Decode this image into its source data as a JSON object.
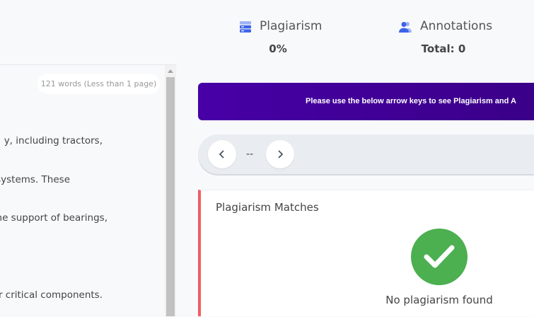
{
  "header": {
    "plagiarism": {
      "icon": "server-stack-icon",
      "label": "Plagiarism",
      "value": "0%"
    },
    "annotations": {
      "icon": "users-icon",
      "label": "Annotations",
      "value": "Total: 0"
    }
  },
  "document": {
    "word_count": "121 words (Less than 1 page)",
    "lines": [
      "y, including tractors,",
      "systems. These",
      "he support of bearings,",
      "er critical components."
    ]
  },
  "banner": {
    "text": "Please use the below arrow keys to see Plagiarism and A",
    "color": "#4700a6"
  },
  "navigator": {
    "prev_icon": "chevron-left-icon",
    "position": "--",
    "next_icon": "chevron-right-icon"
  },
  "card": {
    "title": "Plagiarism Matches",
    "status_icon": "check-icon",
    "status": "No plagiarism found",
    "accent": "#f25c63",
    "success": "#4caf50"
  }
}
